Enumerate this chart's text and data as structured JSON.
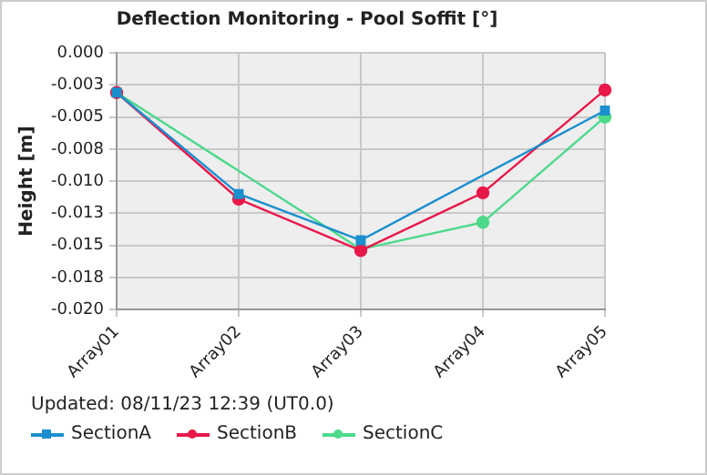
{
  "chart_data": {
    "type": "line",
    "title": "Deflection Monitoring - Pool Soffit [°]",
    "ylabel": "Height [m]",
    "categories": [
      "Array01",
      "Array02",
      "Array03",
      "Array04",
      "Array05"
    ],
    "series": [
      {
        "name": "SectionA",
        "color": "#1a8fce",
        "marker": "square",
        "values": [
          -0.0031,
          -0.011,
          -0.0146,
          null,
          -0.0045
        ]
      },
      {
        "name": "SectionB",
        "color": "#e8184a",
        "marker": "circle",
        "values": [
          -0.0031,
          -0.0114,
          -0.0154,
          -0.0109,
          -0.0029
        ]
      },
      {
        "name": "SectionC",
        "color": "#4cd98a",
        "marker": "circle",
        "values": [
          -0.0031,
          null,
          -0.0153,
          -0.0132,
          -0.005
        ]
      }
    ],
    "ylim": [
      -0.02,
      0
    ],
    "yticks": [
      {
        "value": 0,
        "label": "0.000"
      },
      {
        "value": -0.0025,
        "label": "-0.003"
      },
      {
        "value": -0.005,
        "label": "-0.005"
      },
      {
        "value": -0.0075,
        "label": "-0.008"
      },
      {
        "value": -0.01,
        "label": "-0.010"
      },
      {
        "value": -0.0125,
        "label": "-0.013"
      },
      {
        "value": -0.015,
        "label": "-0.015"
      },
      {
        "value": -0.0175,
        "label": "-0.018"
      },
      {
        "value": -0.02,
        "label": "-0.020"
      }
    ],
    "grid": true,
    "legend": "bottom left",
    "annotations": [
      "Updated: 08/11/23 12:39 (UT0.0)"
    ]
  }
}
